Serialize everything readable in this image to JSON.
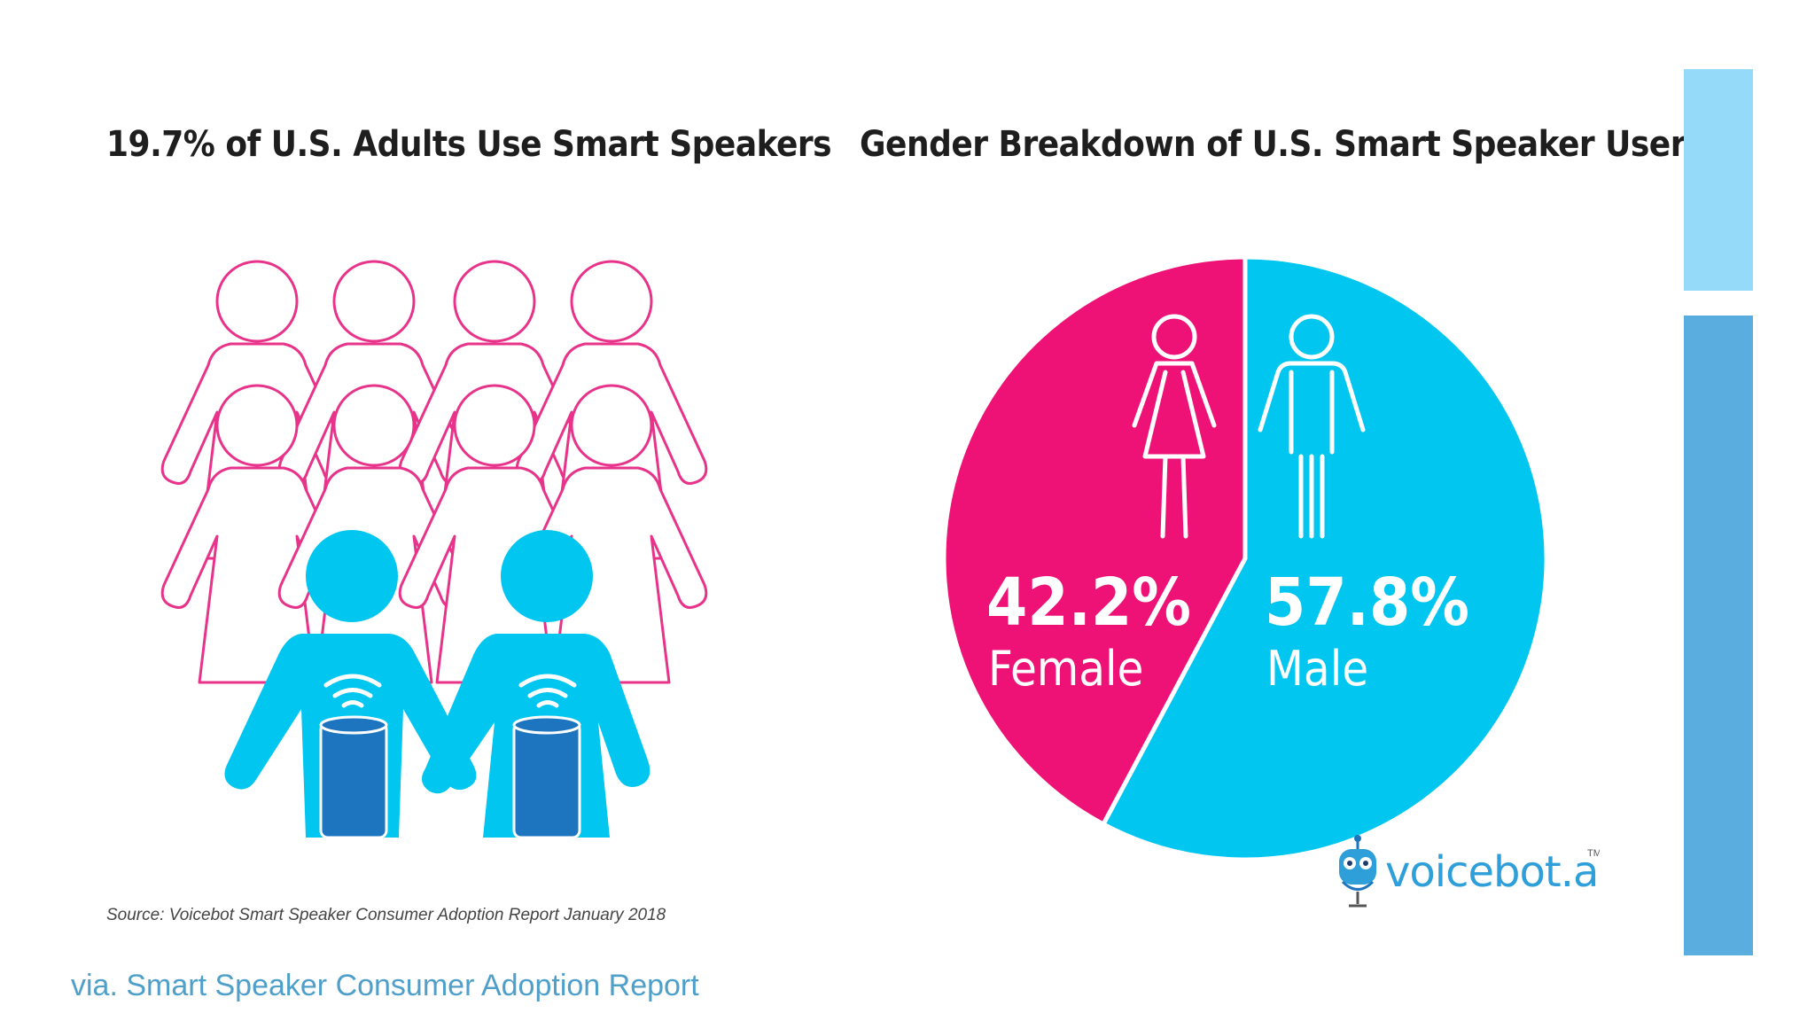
{
  "titles": {
    "left": "19.7% of U.S. Adults Use Smart Speakers",
    "right": "Gender Breakdown of U.S. Smart Speaker Users"
  },
  "colors": {
    "female": "#ee1176",
    "male": "#00c6f0",
    "speaker": "#1e75bf",
    "outline_pink": "#e8338a",
    "bar_light": "#95daf9",
    "bar_dark": "#5aaedf",
    "caption": "#4e9fc9"
  },
  "icons": [
    "person-outline-icon",
    "person-user-icon",
    "smart-speaker-icon",
    "wifi-signal-icon",
    "female-icon",
    "male-icon",
    "robot-logo-icon"
  ],
  "chart_data": [
    {
      "type": "pictogram",
      "title": "19.7% of U.S. Adults Use Smart Speakers",
      "value_percent": 19.7,
      "total_figures": 10,
      "highlighted_figures": 2
    },
    {
      "type": "pie",
      "title": "Gender Breakdown of U.S. Smart Speaker Users",
      "slices": [
        {
          "label": "Female",
          "value": 42.2,
          "display": "42.2%",
          "color": "#ee1176"
        },
        {
          "label": "Male",
          "value": 57.8,
          "display": "57.8%",
          "color": "#00c6f0"
        }
      ]
    }
  ],
  "source_note": "Source: Voicebot Smart Speaker Consumer Adoption Report January 2018",
  "caption": "via. Smart Speaker Consumer Adoption Report",
  "logo": {
    "text": "voicebot.ai",
    "tm": "TM"
  }
}
